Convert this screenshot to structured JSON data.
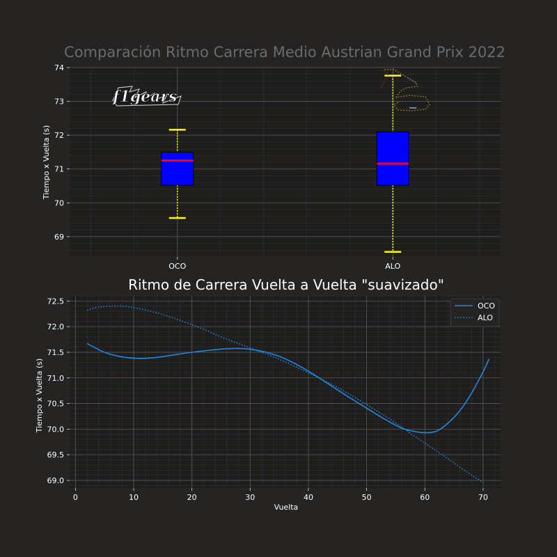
{
  "chart_data": [
    {
      "type": "box",
      "title": "Comparación Ritmo Carrera Medio Austrian Grand Prix 2022",
      "xlabel": "",
      "ylabel": "Tiempo x Vuelta (s)",
      "categories": [
        "OCO",
        "ALO"
      ],
      "boxes": [
        {
          "name": "OCO",
          "whisker_low": 69.55,
          "q1": 70.52,
          "median": 71.25,
          "q3": 71.5,
          "whisker_high": 72.16
        },
        {
          "name": "ALO",
          "whisker_low": 68.55,
          "q1": 70.52,
          "median": 71.16,
          "q3": 72.1,
          "whisker_high": 73.76
        }
      ],
      "ylim": [
        68.4,
        74.0
      ],
      "yticks": [
        69,
        70,
        71,
        72,
        73,
        74
      ],
      "grid": true,
      "colors": {
        "box": "#0000ff",
        "median": "#ff0000",
        "whisker": "#ffff00"
      }
    },
    {
      "type": "line",
      "title": "Ritmo de Carrera Vuelta a Vuelta \"suavizado\"",
      "xlabel": "Vuelta",
      "ylabel": "Tiempo x Vuelta (s)",
      "xlim": [
        -1,
        73
      ],
      "ylim": [
        68.85,
        72.6
      ],
      "xticks": [
        0,
        10,
        20,
        30,
        40,
        50,
        60,
        70
      ],
      "yticks": [
        69.0,
        69.5,
        70.0,
        70.5,
        71.0,
        71.5,
        72.0,
        72.5
      ],
      "legend": "top-right",
      "grid": true,
      "series": [
        {
          "name": "OCO",
          "style": "solid",
          "color": "#1e88e5",
          "x": [
            2,
            5,
            8,
            11,
            14,
            17,
            20,
            23,
            26,
            29,
            32,
            35,
            38,
            41,
            44,
            47,
            50,
            53,
            56,
            58,
            60,
            62,
            64,
            66,
            68,
            70,
            71
          ],
          "y": [
            71.67,
            71.5,
            71.41,
            71.38,
            71.4,
            71.45,
            71.5,
            71.54,
            71.57,
            71.57,
            71.52,
            71.42,
            71.26,
            71.06,
            70.84,
            70.62,
            70.41,
            70.2,
            70.02,
            69.96,
            69.93,
            69.96,
            70.12,
            70.36,
            70.7,
            71.12,
            71.37
          ]
        },
        {
          "name": "ALO",
          "style": "dotted",
          "color": "#1e88e5",
          "x": [
            2,
            4,
            6,
            8,
            10,
            13,
            16,
            19,
            22,
            25,
            28,
            31,
            34,
            37,
            40,
            43,
            46,
            49,
            52,
            55,
            58,
            61,
            64,
            67,
            70
          ],
          "y": [
            72.32,
            72.38,
            72.4,
            72.4,
            72.37,
            72.3,
            72.2,
            72.08,
            71.95,
            71.8,
            71.67,
            71.54,
            71.41,
            71.26,
            71.1,
            70.93,
            70.75,
            70.55,
            70.34,
            70.12,
            69.88,
            69.65,
            69.42,
            69.18,
            68.96
          ]
        }
      ]
    }
  ]
}
